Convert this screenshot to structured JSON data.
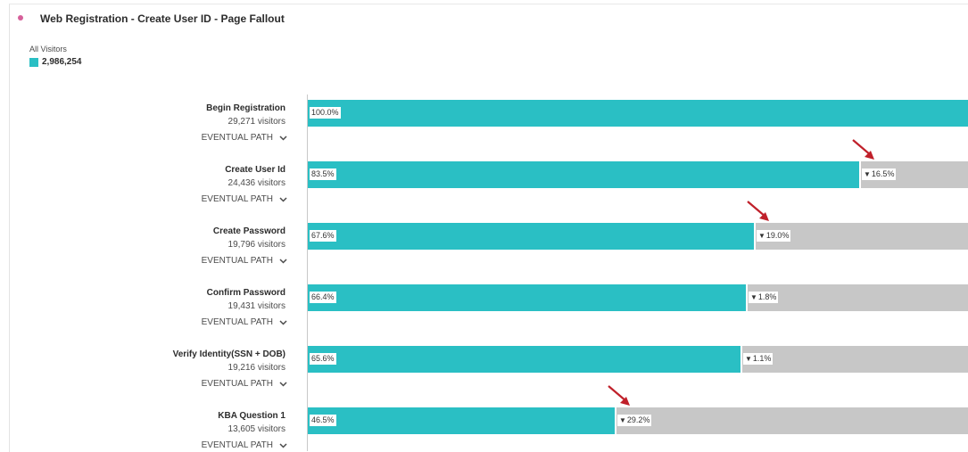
{
  "header": {
    "title": "Web Registration - Create User ID - Page Fallout",
    "dot_color": "#d6609a"
  },
  "segment": {
    "name": "All Visitors",
    "total": "2,986,254",
    "color": "#2abfc4"
  },
  "colors": {
    "bar": "#2abfc4",
    "track": "#c7c7c7",
    "annotation_arrow": "#c0202a"
  },
  "path_label": "EVENTUAL PATH",
  "chart_data": {
    "type": "bar",
    "orientation": "horizontal",
    "title": "Web Registration - Create User ID - Page Fallout",
    "categories": [
      "Begin Registration",
      "Create User Id",
      "Create Password",
      "Confirm Password",
      "Verify Identity(SSN + DOB)",
      "KBA Question 1"
    ],
    "visitors_labels": [
      "29,271 visitors",
      "24,436 visitors",
      "19,796 visitors",
      "19,431 visitors",
      "19,216 visitors",
      "13,605 visitors"
    ],
    "values": [
      100.0,
      83.5,
      67.6,
      66.4,
      65.6,
      46.5
    ],
    "value_labels": [
      "100.0%",
      "83.5%",
      "67.6%",
      "66.4%",
      "65.6%",
      "46.5%"
    ],
    "dropoff_labels": [
      "",
      "16.5%",
      "19.0%",
      "1.8%",
      "1.1%",
      "29.2%"
    ],
    "highlighted_dropoffs": [
      false,
      true,
      true,
      false,
      false,
      true
    ],
    "xlim": [
      0,
      100
    ]
  }
}
